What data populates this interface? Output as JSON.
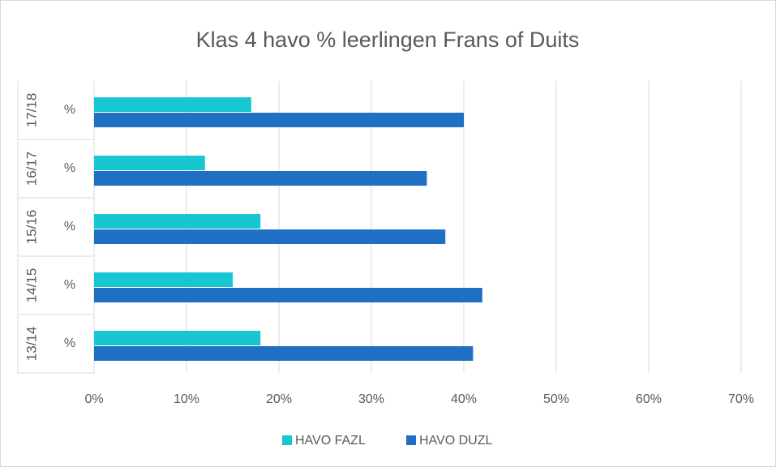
{
  "chart_data": {
    "type": "bar",
    "orientation": "horizontal",
    "title": "Klas 4 havo % leerlingen Frans of Duits",
    "categories": [
      "13/14",
      "14/15",
      "15/16",
      "16/17",
      "17/18"
    ],
    "subcategories": [
      "%",
      "%",
      "%",
      "%",
      "%"
    ],
    "series": [
      {
        "name": "HAVO FAZL",
        "color": "#17c6d0",
        "values": [
          18,
          15,
          18,
          12,
          17
        ]
      },
      {
        "name": "HAVO DUZL",
        "color": "#1f6fc5",
        "values": [
          41,
          42,
          38,
          36,
          40
        ]
      }
    ],
    "xlim": [
      0,
      70
    ],
    "xticks": [
      {
        "value": 0,
        "label": "0%"
      },
      {
        "value": 10,
        "label": "10%"
      },
      {
        "value": 20,
        "label": "20%"
      },
      {
        "value": 30,
        "label": "30%"
      },
      {
        "value": 40,
        "label": "40%"
      },
      {
        "value": 50,
        "label": "50%"
      },
      {
        "value": 60,
        "label": "60%"
      },
      {
        "value": 70,
        "label": "70%"
      }
    ],
    "grid": true,
    "legend": "bottom"
  }
}
